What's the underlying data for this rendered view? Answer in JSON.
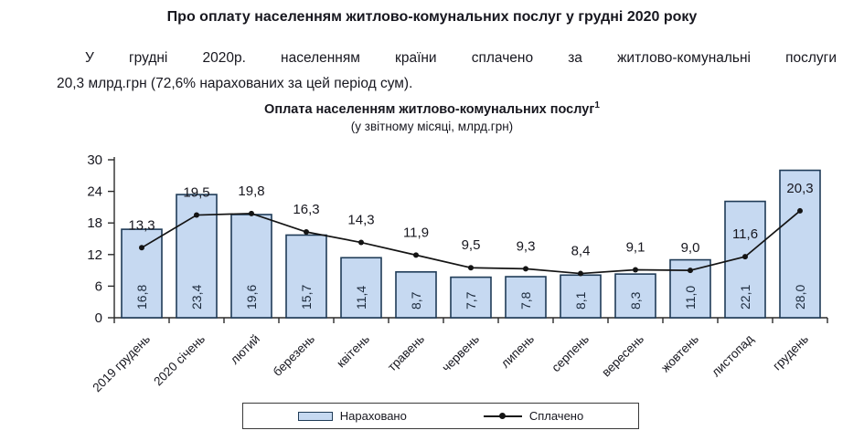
{
  "header": {
    "title": "Про оплату населенням житлово-комунальних послуг у грудні 2020 року",
    "paragraph_lines": [
      "У грудні 2020р. населенням країни сплачено за житлово-комунальні послуги",
      "20,3 млрд.грн (72,6% нарахованих за цей період сум)."
    ]
  },
  "chart": {
    "title": "Оплата населенням житлово-комунальних послуг",
    "title_superscript": "1",
    "subtitle": "(у звітному місяці, млрд.грн)"
  },
  "chart_data": {
    "type": "bar",
    "subtype": "bar+line combo",
    "categories": [
      "2019 грудень",
      "2020 січень",
      "лютий",
      "березень",
      "квітень",
      "травень",
      "червень",
      "липень",
      "серпень",
      "вересень",
      "жовтень",
      "листопад",
      "грудень"
    ],
    "series": [
      {
        "name": "Нараховано",
        "type": "bar",
        "values": [
          16.8,
          23.4,
          19.6,
          15.7,
          11.4,
          8.7,
          7.7,
          7.8,
          8.1,
          8.3,
          11.0,
          22.1,
          28.0
        ],
        "labels": [
          "16,8",
          "23,4",
          "19,6",
          "15,7",
          "11,4",
          "8,7",
          "7,7",
          "7,8",
          "8,1",
          "8,3",
          "11,0",
          "22,1",
          "28,0"
        ]
      },
      {
        "name": "Сплачено",
        "type": "line",
        "values": [
          13.3,
          19.5,
          19.8,
          16.3,
          14.3,
          11.9,
          9.5,
          9.3,
          8.4,
          9.1,
          9.0,
          11.6,
          20.3
        ],
        "labels": [
          "13,3",
          "19,5",
          "19,8",
          "16,3",
          "14,3",
          "11,9",
          "9,5",
          "9,3",
          "8,4",
          "9,1",
          "9,0",
          "11,6",
          "20,3"
        ]
      }
    ],
    "title": "Оплата населенням житлово-комунальних послуг (у звітному місяці, млрд.грн)",
    "xlabel": "",
    "ylabel": "",
    "ylim": [
      0,
      30
    ],
    "yticks": [
      0,
      6,
      12,
      18,
      24,
      30
    ],
    "grid": false,
    "legend_position": "bottom",
    "colors": {
      "bar_fill": "#c6d9f1",
      "bar_border": "#1f3b57",
      "line": "#141414",
      "bar_label_text": "#1c2a3c",
      "axis": "#2a2a2a",
      "label_text": "#17171f"
    }
  }
}
